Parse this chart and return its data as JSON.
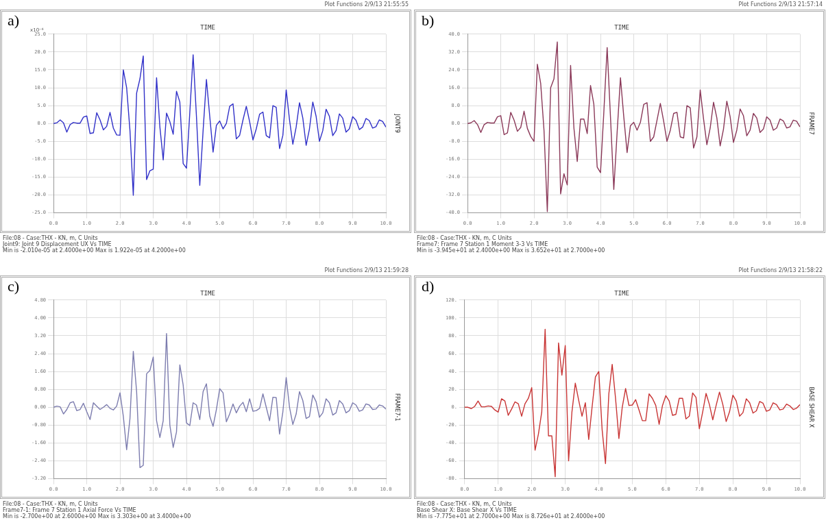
{
  "chart_data": [
    {
      "type": "line",
      "title": "TIME",
      "ylabel": "x10⁻⁶",
      "marker": "none",
      "grid": true,
      "x": [
        0,
        0.1,
        0.2,
        0.3,
        0.4,
        0.5,
        0.6,
        0.7,
        0.8,
        0.9,
        1,
        1.1,
        1.2,
        1.3,
        1.4,
        1.5,
        1.6,
        1.7,
        1.8,
        1.9,
        2,
        2.1,
        2.2,
        2.3,
        2.4,
        2.5,
        2.6,
        2.7,
        2.8,
        2.9,
        3,
        3.1,
        3.2,
        3.3,
        3.4,
        3.5,
        3.6,
        3.7,
        3.8,
        3.9,
        4,
        4.1,
        4.2,
        4.3,
        4.4,
        4.5,
        4.6,
        4.7,
        4.8,
        4.9,
        5,
        5.1,
        5.2,
        5.3,
        5.4,
        5.5,
        5.6,
        5.7,
        5.8,
        5.9,
        6,
        6.1,
        6.2,
        6.3,
        6.4,
        6.5,
        6.6,
        6.7,
        6.8,
        6.9,
        7,
        7.1,
        7.2,
        7.3,
        7.4,
        7.5,
        7.6,
        7.7,
        7.8,
        7.9,
        8,
        8.1,
        8.2,
        8.3,
        8.4,
        8.5,
        8.6,
        8.7,
        8.8,
        8.9,
        9,
        9.1,
        9.2,
        9.3,
        9.4,
        9.5,
        9.6,
        9.7,
        9.8,
        9.9,
        10
      ],
      "series": [
        {
          "name": "JOINT9",
          "color": "#3030c8",
          "values": [
            0,
            0.2,
            1.0,
            0.2,
            -2.4,
            -0.3,
            0.3,
            0.1,
            0.1,
            1.8,
            2.1,
            -2.8,
            -2.6,
            3.0,
            1.0,
            -1.8,
            -0.8,
            3.1,
            -1.3,
            -3.2,
            -3.3,
            15.0,
            10.0,
            -2.0,
            -20.1,
            8.5,
            12.5,
            18.9,
            -15.7,
            -13.2,
            -12.8,
            12.8,
            -1.0,
            -10.2,
            2.9,
            0.5,
            -3.0,
            9.0,
            6.0,
            -11.2,
            -12.5,
            3.0,
            19.22,
            2.0,
            -17.3,
            -2.0,
            12.3,
            2.0,
            -8.0,
            -0.5,
            0.7,
            -1.5,
            0.0,
            4.8,
            5.5,
            -4.3,
            -3.3,
            1.0,
            4.8,
            0.5,
            -4.6,
            -1.5,
            2.6,
            3.2,
            -3.4,
            -4.0,
            5.0,
            4.5,
            -7.0,
            -3.3,
            9.4,
            1.0,
            -5.8,
            -1.0,
            5.8,
            1.5,
            -6.1,
            -1.5,
            6.0,
            2.0,
            -5.0,
            -2.0,
            4.0,
            2.0,
            -3.4,
            -2.0,
            2.7,
            1.5,
            -2.4,
            -1.5,
            1.9,
            0.9,
            -1.7,
            -1.0,
            1.4,
            0.8,
            -1.3,
            -0.9,
            1.0,
            0.6,
            -1.0
          ]
        }
      ],
      "xlim": [
        0,
        10
      ],
      "xticks": [
        {
          "value": 0,
          "label": "0.0"
        },
        {
          "value": 1,
          "label": "1.0"
        },
        {
          "value": 2,
          "label": "2.0"
        },
        {
          "value": 3,
          "label": "3.0"
        },
        {
          "value": 4,
          "label": "4.0"
        },
        {
          "value": 5,
          "label": "5.0"
        },
        {
          "value": 6,
          "label": "6.0"
        },
        {
          "value": 7,
          "label": "7.0"
        },
        {
          "value": 8,
          "label": "8.0"
        },
        {
          "value": 9,
          "label": "9.0"
        },
        {
          "value": 10,
          "label": "10.0"
        }
      ],
      "ylim": [
        -25,
        25
      ],
      "yticks": [
        {
          "value": -25,
          "label": "-25.0"
        },
        {
          "value": -20,
          "label": "-20.0"
        },
        {
          "value": -15,
          "label": "-15.0"
        },
        {
          "value": -10,
          "label": "-10.0"
        },
        {
          "value": -5,
          "label": "-5.0"
        },
        {
          "value": 0,
          "label": "0.0"
        },
        {
          "value": 5,
          "label": "5.0"
        },
        {
          "value": 10,
          "label": "10.0"
        },
        {
          "value": 15,
          "label": "15.0"
        },
        {
          "value": 20,
          "label": "20.0"
        },
        {
          "value": 25,
          "label": "25.0"
        }
      ],
      "annotations": [
        "a)",
        "Plot Functions  2/9/13 21:55:55",
        "File:08 - Case:THX - KN, m, C Units",
        "Joint9: Joint 9 Displacement UX  Vs  TIME",
        "Min is -2.010e-05 at 2.4000e+00  Max is 1.922e-05 at 4.2000e+00"
      ]
    },
    {
      "type": "line",
      "title": "TIME",
      "marker": "none",
      "grid": true,
      "x": [
        0,
        0.1,
        0.2,
        0.3,
        0.4,
        0.5,
        0.6,
        0.7,
        0.8,
        0.9,
        1,
        1.1,
        1.2,
        1.3,
        1.4,
        1.5,
        1.6,
        1.7,
        1.8,
        1.9,
        2,
        2.1,
        2.2,
        2.3,
        2.4,
        2.5,
        2.6,
        2.7,
        2.8,
        2.9,
        3,
        3.1,
        3.2,
        3.3,
        3.4,
        3.5,
        3.6,
        3.7,
        3.8,
        3.9,
        4,
        4.1,
        4.2,
        4.3,
        4.4,
        4.5,
        4.6,
        4.7,
        4.8,
        4.9,
        5,
        5.1,
        5.2,
        5.3,
        5.4,
        5.5,
        5.6,
        5.7,
        5.8,
        5.9,
        6,
        6.1,
        6.2,
        6.3,
        6.4,
        6.5,
        6.6,
        6.7,
        6.8,
        6.9,
        7,
        7.1,
        7.2,
        7.3,
        7.4,
        7.5,
        7.6,
        7.7,
        7.8,
        7.9,
        8,
        8.1,
        8.2,
        8.3,
        8.4,
        8.5,
        8.6,
        8.7,
        8.8,
        8.9,
        9,
        9.1,
        9.2,
        9.3,
        9.4,
        9.5,
        9.6,
        9.7,
        9.8,
        9.9,
        10
      ],
      "series": [
        {
          "name": "FRAME7",
          "color": "#8a3858",
          "values": [
            0,
            0.3,
            1.3,
            -0.5,
            -4.0,
            -0.5,
            0.5,
            0.2,
            0.2,
            3.0,
            3.5,
            -5.0,
            -4.2,
            5.0,
            1.5,
            -3.5,
            -1.8,
            5.5,
            -2.2,
            -5.8,
            -8.0,
            26.5,
            18.0,
            -3.0,
            -39.45,
            16.0,
            20.0,
            36.52,
            -31.5,
            -22.5,
            -27.5,
            26.0,
            -2.0,
            -17.0,
            2.0,
            2.0,
            -4.5,
            17.0,
            8.5,
            -19.5,
            -22.0,
            5.0,
            34.0,
            3.0,
            -29.5,
            -4.0,
            20.5,
            3.0,
            -13.0,
            -1.0,
            0.5,
            -3.0,
            0.5,
            8.5,
            9.3,
            -8.0,
            -6.0,
            1.5,
            9.0,
            1.0,
            -8.0,
            -3.0,
            4.5,
            5.0,
            -6.0,
            -6.5,
            8.0,
            7.0,
            -11.0,
            -6.0,
            15.0,
            2.0,
            -9.5,
            -2.0,
            9.5,
            2.5,
            -10.0,
            -2.5,
            10.0,
            3.0,
            -8.5,
            -3.0,
            6.5,
            3.5,
            -5.5,
            -3.0,
            4.5,
            2.5,
            -4.0,
            -2.5,
            3.0,
            1.5,
            -3.0,
            -2.0,
            2.0,
            1.2,
            -2.0,
            -1.5,
            1.5,
            1.0,
            -1.5
          ]
        }
      ],
      "xlim": [
        0,
        10
      ],
      "xticks": [
        {
          "value": 0,
          "label": "0.0"
        },
        {
          "value": 1,
          "label": "1.0"
        },
        {
          "value": 2,
          "label": "2.0"
        },
        {
          "value": 3,
          "label": "3.0"
        },
        {
          "value": 4,
          "label": "4.0"
        },
        {
          "value": 5,
          "label": "5.0"
        },
        {
          "value": 6,
          "label": "6.0"
        },
        {
          "value": 7,
          "label": "7.0"
        },
        {
          "value": 8,
          "label": "8.0"
        },
        {
          "value": 9,
          "label": "9.0"
        },
        {
          "value": 10,
          "label": "10.0"
        }
      ],
      "ylim": [
        -40,
        40
      ],
      "yticks": [
        {
          "value": -40,
          "label": "-40.0"
        },
        {
          "value": -32,
          "label": "-32.0"
        },
        {
          "value": -24,
          "label": "-24.0"
        },
        {
          "value": -16,
          "label": "-16.0"
        },
        {
          "value": -8,
          "label": "-8.0"
        },
        {
          "value": 0,
          "label": "0.0"
        },
        {
          "value": 8,
          "label": "8.0"
        },
        {
          "value": 16,
          "label": "16.0"
        },
        {
          "value": 24,
          "label": "24.0"
        },
        {
          "value": 32,
          "label": "32.0"
        },
        {
          "value": 40,
          "label": "40.0"
        }
      ],
      "annotations": [
        "b)",
        "Plot Functions  2/9/13 21:57:14",
        "File:08 - Case:THX - KN, m, C Units",
        "Frame7: Frame 7  Station 1 Moment 3-3  Vs  TIME",
        "Min is -3.945e+01 at 2.4000e+00  Max is 3.652e+01 at 2.7000e+00"
      ]
    },
    {
      "type": "line",
      "title": "TIME",
      "marker": "none",
      "grid": true,
      "x": [
        0,
        0.1,
        0.2,
        0.3,
        0.4,
        0.5,
        0.6,
        0.7,
        0.8,
        0.9,
        1,
        1.1,
        1.2,
        1.3,
        1.4,
        1.5,
        1.6,
        1.7,
        1.8,
        1.9,
        2,
        2.1,
        2.2,
        2.3,
        2.4,
        2.5,
        2.6,
        2.7,
        2.8,
        2.9,
        3,
        3.1,
        3.2,
        3.3,
        3.4,
        3.5,
        3.6,
        3.7,
        3.8,
        3.9,
        4,
        4.1,
        4.2,
        4.3,
        4.4,
        4.5,
        4.6,
        4.7,
        4.8,
        4.9,
        5,
        5.1,
        5.2,
        5.3,
        5.4,
        5.5,
        5.6,
        5.7,
        5.8,
        5.9,
        6,
        6.1,
        6.2,
        6.3,
        6.4,
        6.5,
        6.6,
        6.7,
        6.8,
        6.9,
        7,
        7.1,
        7.2,
        7.3,
        7.4,
        7.5,
        7.6,
        7.7,
        7.8,
        7.9,
        8,
        8.1,
        8.2,
        8.3,
        8.4,
        8.5,
        8.6,
        8.7,
        8.8,
        8.9,
        9,
        9.1,
        9.2,
        9.3,
        9.4,
        9.5,
        9.6,
        9.7,
        9.8,
        9.9,
        10
      ],
      "series": [
        {
          "name": "FRAME7-1",
          "color": "#7c7cae",
          "values": [
            0,
            0.05,
            0.02,
            -0.3,
            -0.1,
            0.2,
            0.25,
            -0.15,
            -0.1,
            0.18,
            -0.2,
            -0.55,
            0.2,
            0.05,
            -0.1,
            0.0,
            0.12,
            -0.05,
            -0.12,
            0.05,
            0.65,
            -0.4,
            -1.9,
            -0.5,
            2.5,
            0.7,
            -2.7,
            -2.6,
            1.5,
            1.65,
            2.25,
            -0.6,
            -1.35,
            -0.6,
            3.303,
            -0.8,
            -1.8,
            -1.1,
            1.9,
            1.0,
            -0.7,
            -0.82,
            0.2,
            0.1,
            -0.55,
            0.7,
            1.05,
            -0.4,
            -0.85,
            -0.1,
            0.83,
            0.65,
            -0.65,
            -0.3,
            0.15,
            -0.25,
            0.05,
            0.22,
            -0.2,
            0.38,
            -0.18,
            -0.15,
            -0.05,
            0.6,
            0.0,
            -0.6,
            0.45,
            0.43,
            -1.2,
            -0.2,
            1.33,
            0.0,
            -0.77,
            -0.3,
            0.7,
            0.3,
            -0.5,
            -0.42,
            0.55,
            0.25,
            -0.45,
            -0.25,
            0.38,
            0.2,
            -0.35,
            -0.25,
            0.3,
            0.15,
            -0.25,
            -0.15,
            0.2,
            0.1,
            -0.18,
            -0.12,
            0.15,
            0.1,
            -0.1,
            -0.08,
            0.1,
            0.06,
            -0.08
          ]
        }
      ],
      "xlim": [
        0,
        10
      ],
      "xticks": [
        {
          "value": 0,
          "label": "0.0"
        },
        {
          "value": 1,
          "label": "1.0"
        },
        {
          "value": 2,
          "label": "2.0"
        },
        {
          "value": 3,
          "label": "3.0"
        },
        {
          "value": 4,
          "label": "4.0"
        },
        {
          "value": 5,
          "label": "5.0"
        },
        {
          "value": 6,
          "label": "6.0"
        },
        {
          "value": 7,
          "label": "7.0"
        },
        {
          "value": 8,
          "label": "8.0"
        },
        {
          "value": 9,
          "label": "9.0"
        },
        {
          "value": 10,
          "label": "10.0"
        }
      ],
      "ylim": [
        -3.2,
        4.8
      ],
      "yticks": [
        {
          "value": -3.2,
          "label": "-3.20"
        },
        {
          "value": -2.4,
          "label": "-2.40"
        },
        {
          "value": -1.6,
          "label": "-1.60"
        },
        {
          "value": -0.8,
          "label": "-0.80"
        },
        {
          "value": 0,
          "label": "0.00"
        },
        {
          "value": 0.8,
          "label": "0.80"
        },
        {
          "value": 1.6,
          "label": "1.60"
        },
        {
          "value": 2.4,
          "label": "2.40"
        },
        {
          "value": 3.2,
          "label": "3.20"
        },
        {
          "value": 4,
          "label": "4.00"
        },
        {
          "value": 4.8,
          "label": "4.80"
        }
      ],
      "annotations": [
        "c)",
        "Plot Functions  2/9/13 21:59:28",
        "File:08 - Case:THX - KN, m, C Units",
        "Frame7-1: Frame 7  Station 1 Axial Force  Vs  TIME",
        "Min is -2.700e+00 at 2.6000e+00  Max is 3.303e+00 at 3.4000e+00"
      ]
    },
    {
      "type": "line",
      "title": "TIME",
      "marker": "none",
      "grid": true,
      "x": [
        0,
        0.1,
        0.2,
        0.3,
        0.4,
        0.5,
        0.6,
        0.7,
        0.8,
        0.9,
        1,
        1.1,
        1.2,
        1.3,
        1.4,
        1.5,
        1.6,
        1.7,
        1.8,
        1.9,
        2,
        2.1,
        2.2,
        2.3,
        2.4,
        2.5,
        2.6,
        2.7,
        2.8,
        2.9,
        3,
        3.1,
        3.2,
        3.3,
        3.4,
        3.5,
        3.6,
        3.7,
        3.8,
        3.9,
        4,
        4.1,
        4.2,
        4.3,
        4.4,
        4.5,
        4.6,
        4.7,
        4.8,
        4.9,
        5,
        5.1,
        5.2,
        5.3,
        5.4,
        5.5,
        5.6,
        5.7,
        5.8,
        5.9,
        6,
        6.1,
        6.2,
        6.3,
        6.4,
        6.5,
        6.6,
        6.7,
        6.8,
        6.9,
        7,
        7.1,
        7.2,
        7.3,
        7.4,
        7.5,
        7.6,
        7.7,
        7.8,
        7.9,
        8,
        8.1,
        8.2,
        8.3,
        8.4,
        8.5,
        8.6,
        8.7,
        8.8,
        8.9,
        9,
        9.1,
        9.2,
        9.3,
        9.4,
        9.5,
        9.6,
        9.7,
        9.8,
        9.9,
        10
      ],
      "series": [
        {
          "name": "BASE SHEAR X",
          "color": "#c83434",
          "values": [
            0,
            0,
            -1.5,
            1.0,
            7.0,
            0.5,
            0.5,
            1.5,
            1.0,
            -3.0,
            -5.5,
            9.5,
            7.0,
            -9.0,
            -2.0,
            6.0,
            4.0,
            -10.0,
            4.0,
            10.0,
            22.0,
            -48.0,
            -30.0,
            -5.0,
            87.26,
            -32.0,
            -32.0,
            -77.75,
            72.0,
            36.0,
            69.0,
            -60.0,
            -5.0,
            27.0,
            8.0,
            -10.0,
            5.0,
            -36.0,
            0.0,
            34.0,
            40.0,
            -25.0,
            -63.0,
            15.0,
            48.0,
            10.0,
            -35.0,
            0.0,
            21.0,
            2.0,
            2.5,
            8.5,
            -3.0,
            -15.0,
            -15.0,
            15.0,
            10.0,
            2.0,
            -19.0,
            2.0,
            13.0,
            7.0,
            -9.0,
            -8.0,
            10.0,
            10.0,
            -13.0,
            -10.0,
            16.0,
            11.0,
            -24.0,
            -5.0,
            15.5,
            3.0,
            -14.0,
            2.0,
            17.0,
            3.0,
            -16.0,
            -5.0,
            13.5,
            7.0,
            -10.0,
            -6.0,
            9.5,
            5.0,
            -6.5,
            -4.0,
            6.5,
            4.5,
            -4.5,
            -3.0,
            5.0,
            3.0,
            -3.0,
            -2.0,
            3.5,
            1.5,
            -2.5,
            -1.0,
            3.0
          ]
        }
      ],
      "xlim": [
        0,
        10
      ],
      "xticks": [
        {
          "value": 0,
          "label": "0.0"
        },
        {
          "value": 1,
          "label": "1.0"
        },
        {
          "value": 2,
          "label": "2.0"
        },
        {
          "value": 3,
          "label": "3.0"
        },
        {
          "value": 4,
          "label": "4.0"
        },
        {
          "value": 5,
          "label": "5.0"
        },
        {
          "value": 6,
          "label": "6.0"
        },
        {
          "value": 7,
          "label": "7.0"
        },
        {
          "value": 8,
          "label": "8.0"
        },
        {
          "value": 9,
          "label": "9.0"
        },
        {
          "value": 10,
          "label": "10.0"
        }
      ],
      "ylim": [
        -80,
        120
      ],
      "yticks": [
        {
          "value": -80,
          "label": "-80."
        },
        {
          "value": -60,
          "label": "-60."
        },
        {
          "value": -40,
          "label": "-40."
        },
        {
          "value": -20,
          "label": "-20."
        },
        {
          "value": 0,
          "label": "0."
        },
        {
          "value": 20,
          "label": "20."
        },
        {
          "value": 40,
          "label": "40."
        },
        {
          "value": 60,
          "label": "60."
        },
        {
          "value": 80,
          "label": "80."
        },
        {
          "value": 100,
          "label": "100."
        },
        {
          "value": 120,
          "label": "120."
        }
      ],
      "annotations": [
        "d)",
        "Plot Functions  2/9/13 21:58:22",
        "File:08 - Case:THX - KN, m, C Units",
        "Base Shear X: Base Shear X  Vs  TIME",
        "Min is -7.775e+01 at 2.7000e+00  Max is 8.726e+01 at 2.4000e+00"
      ]
    }
  ]
}
